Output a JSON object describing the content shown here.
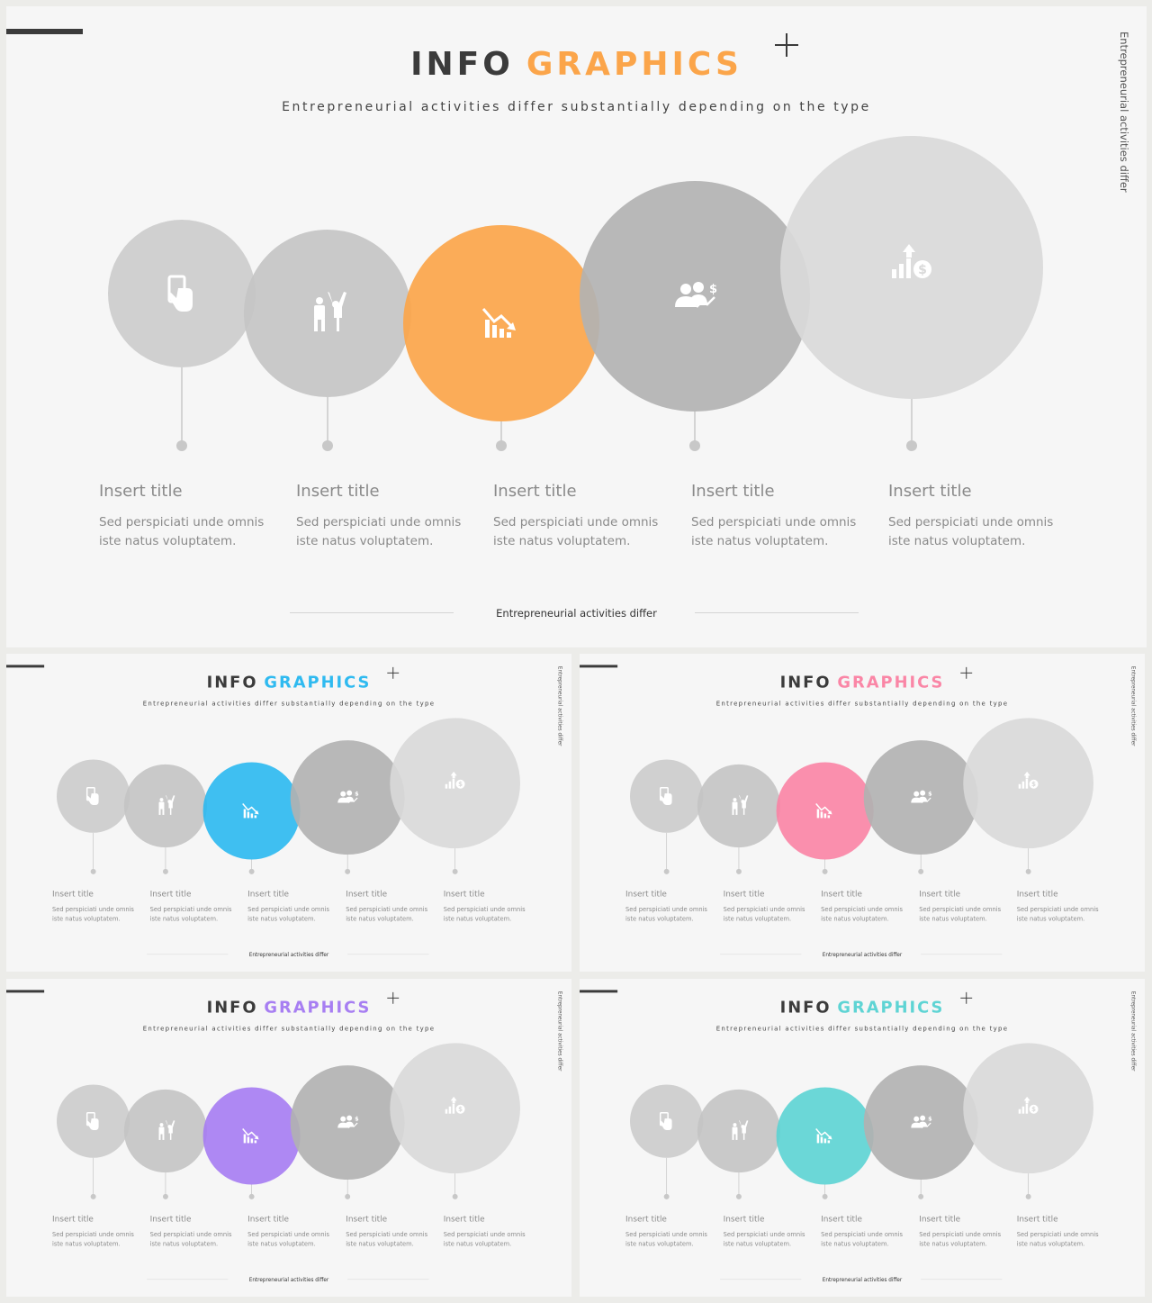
{
  "slide": {
    "title_main": "INFO",
    "title_accent": "GRAPHICS",
    "subtitle": "Entrepreneurial activities differ substantially depending on the type",
    "side_text": "Entrepreneurial activities differ",
    "footer": "Entrepreneurial activities differ",
    "items": [
      {
        "title": "Insert title",
        "desc": "Sed perspiciati unde omnis iste natus voluptatem.",
        "icon": "phone-hand-icon",
        "fill": "#cccccc"
      },
      {
        "title": "Insert title",
        "desc": "Sed perspiciati unde omnis iste natus voluptatem.",
        "icon": "people-cheer-icon",
        "fill": "#c4c4c4"
      },
      {
        "title": "Insert title",
        "desc": "Sed perspiciati unde omnis iste natus voluptatem.",
        "icon": "chart-down-icon",
        "fill": "accent"
      },
      {
        "title": "Insert title",
        "desc": "Sed perspiciati unde omnis iste natus voluptatem.",
        "icon": "people-money-icon",
        "fill": "#b2b2b2"
      },
      {
        "title": "Insert title",
        "desc": "Sed perspiciati unde omnis iste natus voluptatem.",
        "icon": "chart-up-dollar-icon",
        "fill": "#d9d9d9"
      }
    ]
  },
  "variants": [
    {
      "id": "orange",
      "accent": "#fba54a"
    },
    {
      "id": "blue",
      "accent": "#2fbaf0"
    },
    {
      "id": "pink",
      "accent": "#fa86a6"
    },
    {
      "id": "purple",
      "accent": "#a77ef2"
    },
    {
      "id": "teal",
      "accent": "#5ed4d4"
    }
  ]
}
